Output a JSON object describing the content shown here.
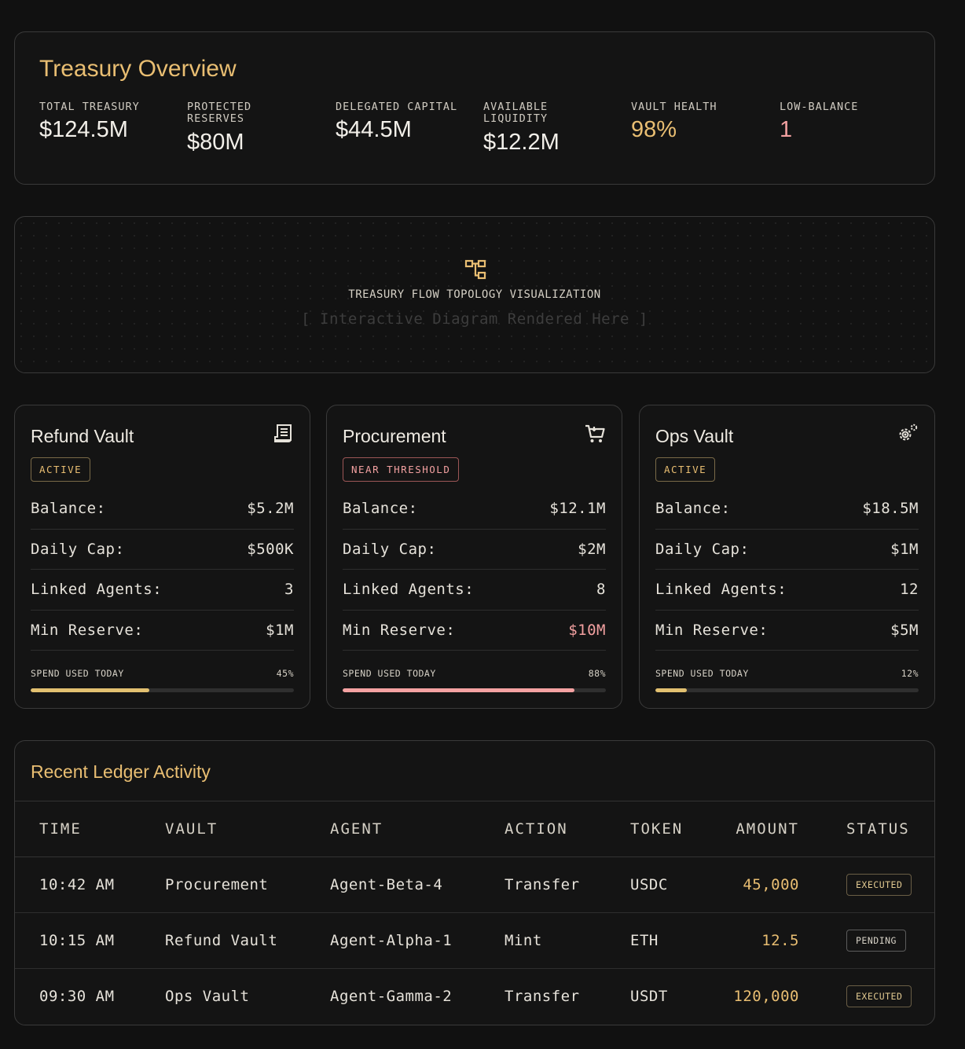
{
  "overview": {
    "title": "Treasury Overview",
    "stats": [
      {
        "label": "Total Treasury",
        "value": "$124.5M"
      },
      {
        "label": "Protected Reserves",
        "value": "$80M"
      },
      {
        "label": "Delegated Capital",
        "value": "$44.5M"
      },
      {
        "label": "Available Liquidity",
        "value": "$12.2M"
      },
      {
        "label": "Vault Health",
        "value": "98%"
      },
      {
        "label": "Low-Balance",
        "value": "1"
      }
    ]
  },
  "topology": {
    "icon": "hierarchy-icon",
    "caption": "TREASURY FLOW TOPOLOGY VISUALIZATION",
    "placeholder": "[ Interactive Diagram Rendered Here ]"
  },
  "vaults": [
    {
      "name": "Refund Vault",
      "icon": "receipt-icon",
      "status": "ACTIVE",
      "rows": [
        {
          "label": "Balance:",
          "value": "$5.2M"
        },
        {
          "label": "Daily Cap:",
          "value": "$500K"
        },
        {
          "label": "Linked Agents:",
          "value": "3"
        },
        {
          "label": "Min Reserve:",
          "value": "$1M"
        }
      ],
      "spend_label": "SPEND USED TODAY",
      "spend_text": "45%",
      "spend_fraction": 0.45
    },
    {
      "name": "Procurement",
      "icon": "cart-icon",
      "status": "NEAR THRESHOLD",
      "rows": [
        {
          "label": "Balance:",
          "value": "$12.1M"
        },
        {
          "label": "Daily Cap:",
          "value": "$2M"
        },
        {
          "label": "Linked Agents:",
          "value": "8"
        },
        {
          "label": "Min Reserve:",
          "value": "$10M"
        }
      ],
      "spend_label": "SPEND USED TODAY",
      "spend_text": "88%",
      "spend_fraction": 0.88
    },
    {
      "name": "Ops Vault",
      "icon": "gears-icon",
      "status": "ACTIVE",
      "rows": [
        {
          "label": "Balance:",
          "value": "$18.5M"
        },
        {
          "label": "Daily Cap:",
          "value": "$1M"
        },
        {
          "label": "Linked Agents:",
          "value": "12"
        },
        {
          "label": "Min Reserve:",
          "value": "$5M"
        }
      ],
      "spend_label": "SPEND USED TODAY",
      "spend_text": "12%",
      "spend_fraction": 0.12
    }
  ],
  "ledger": {
    "title": "Recent Ledger Activity",
    "columns": [
      "TIME",
      "VAULT",
      "AGENT",
      "ACTION",
      "TOKEN",
      "AMOUNT",
      "STATUS"
    ],
    "rows": [
      [
        "10:42 AM",
        "Procurement",
        "Agent-Beta-4",
        "Transfer",
        "USDC",
        "45,000",
        "EXECUTED"
      ],
      [
        "10:15 AM",
        "Refund Vault",
        "Agent-Alpha-1",
        "Mint",
        "ETH",
        "12.5",
        "PENDING"
      ],
      [
        "09:30 AM",
        "Ops Vault",
        "Agent-Gamma-2",
        "Transfer",
        "USDT",
        "120,000",
        "EXECUTED"
      ]
    ]
  },
  "colors": {
    "accent": "#e9be72",
    "warning": "#f2a0a0",
    "background": "#111111"
  }
}
